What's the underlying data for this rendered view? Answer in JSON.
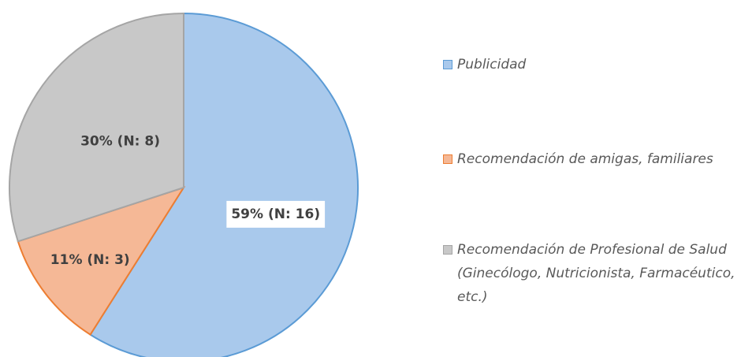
{
  "chart_data": {
    "type": "pie",
    "categories": [
      "Publicidad",
      "Recomendación de amigas, familiares",
      "Recomendación de Profesional de Salud (Ginecólogo, Nutricionista, Farmacéutico, etc.)"
    ],
    "values": [
      59,
      11,
      30
    ],
    "value_labels": [
      "59% (N: 16)",
      "11% (N: 3)",
      "30% (N: 8)"
    ],
    "colors": [
      "#a9c9ec",
      "#f5b896",
      "#c8c8c8"
    ],
    "legend": "right"
  }
}
